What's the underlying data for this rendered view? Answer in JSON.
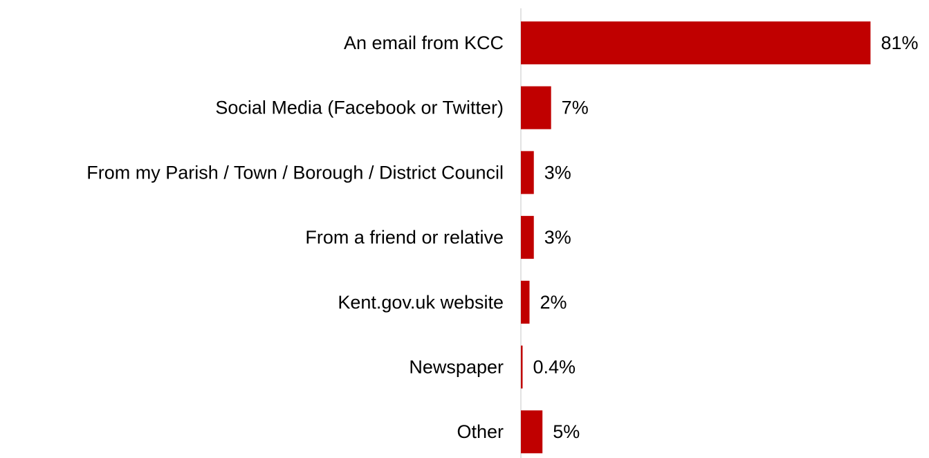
{
  "chart_data": {
    "type": "bar",
    "orientation": "horizontal",
    "categories": [
      "An email from KCC",
      "Social Media (Facebook or Twitter)",
      "From my Parish / Town / Borough / District Council",
      "From a friend or relative",
      "Kent.gov.uk website",
      "Newspaper",
      "Other"
    ],
    "values": [
      81,
      7,
      3,
      3,
      2,
      0.4,
      5
    ],
    "value_labels": [
      "81%",
      "7%",
      "3%",
      "3%",
      "2%",
      "0.4%",
      "5%"
    ],
    "unit": "%",
    "xlim": [
      0,
      100
    ],
    "grid": false,
    "legend": "none",
    "colors": {
      "bar": "#C00000",
      "axis": "#D9D9D9",
      "text": "#000000"
    }
  }
}
